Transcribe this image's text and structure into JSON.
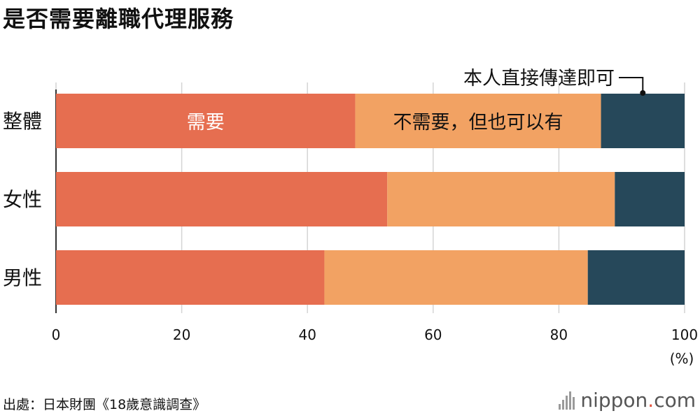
{
  "title": "是否需要離職代理服務",
  "source": "出處：日本財團《18歲意識調查》",
  "brand": {
    "name": "nippon",
    "dot": ".",
    "tld": "com"
  },
  "chart_data": {
    "type": "bar",
    "orientation": "horizontal",
    "stacked": true,
    "categories": [
      "整體",
      "女性",
      "男性"
    ],
    "series": [
      {
        "name": "需要",
        "color": "#e66e50",
        "values": [
          47.6,
          52.7,
          42.7
        ]
      },
      {
        "name": "不需要，但也可以有",
        "color": "#f2a263",
        "values": [
          39.1,
          36.2,
          41.9
        ]
      },
      {
        "name": "本人直接傳達即可",
        "color": "#26485a",
        "values": [
          13.3,
          11.1,
          15.4
        ]
      }
    ],
    "xlim": [
      0,
      100
    ],
    "xticks": [
      "0",
      "20",
      "40",
      "60",
      "80",
      "100"
    ],
    "xunit": "(%)",
    "grid": true
  }
}
